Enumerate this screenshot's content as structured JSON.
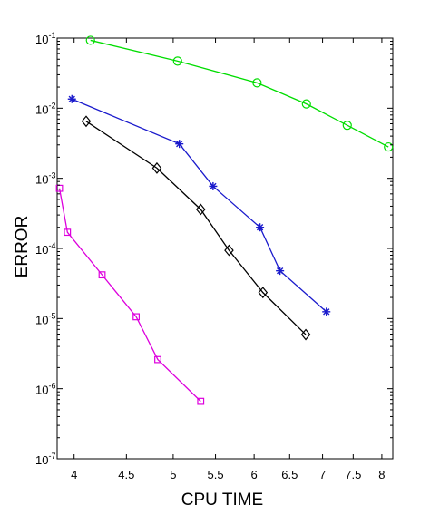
{
  "chart_data": {
    "type": "line",
    "title": "",
    "xlabel": "CPU TIME",
    "ylabel": "ERROR",
    "x_scale": "log",
    "y_scale": "log",
    "xlim": [
      3.85,
      8.2
    ],
    "ylim": [
      1e-07,
      0.1
    ],
    "x_ticks": [
      4,
      4.5,
      5,
      5.5,
      6,
      6.5,
      7,
      7.5,
      8
    ],
    "x_tick_labels": [
      "4",
      "4.5",
      "5",
      "5.5",
      "6",
      "6.5",
      "7",
      "7.5",
      "8"
    ],
    "y_ticks": [
      {
        "value": 0.1,
        "base": "10",
        "exp": "-1"
      },
      {
        "value": 0.01,
        "base": "10",
        "exp": "-2"
      },
      {
        "value": 0.001,
        "base": "10",
        "exp": "-3"
      },
      {
        "value": 0.0001,
        "base": "10",
        "exp": "-4"
      },
      {
        "value": 1e-05,
        "base": "10",
        "exp": "-5"
      },
      {
        "value": 1e-06,
        "base": "10",
        "exp": "-6"
      },
      {
        "value": 1e-07,
        "base": "10",
        "exp": "-7"
      }
    ],
    "grid": false,
    "legend": "none",
    "series": [
      {
        "color": "#00dd00",
        "marker": "circle",
        "x": [
          4.15,
          5.05,
          6.04,
          6.75,
          7.4,
          8.12
        ],
        "y": [
          0.093,
          0.047,
          0.023,
          0.0115,
          0.0057,
          0.0028
        ]
      },
      {
        "color": "#1a1acc",
        "marker": "asterisk",
        "x": [
          3.98,
          5.07,
          5.47,
          6.08,
          6.36,
          7.06
        ],
        "y": [
          0.0135,
          0.0031,
          0.00077,
          0.0002,
          4.8e-05,
          1.25e-05
        ]
      },
      {
        "color": "#000000",
        "marker": "diamond",
        "x": [
          4.11,
          4.82,
          5.32,
          5.67,
          6.12,
          6.74
        ],
        "y": [
          0.0065,
          0.0014,
          0.00036,
          9.4e-05,
          2.35e-05,
          5.9e-06
        ]
      },
      {
        "color": "#dd00dd",
        "marker": "square",
        "x": [
          3.87,
          3.94,
          4.26,
          4.6,
          4.83,
          5.32
        ],
        "y": [
          0.00072,
          0.00017,
          4.2e-05,
          1.06e-05,
          2.6e-06,
          6.6e-07
        ]
      }
    ]
  }
}
